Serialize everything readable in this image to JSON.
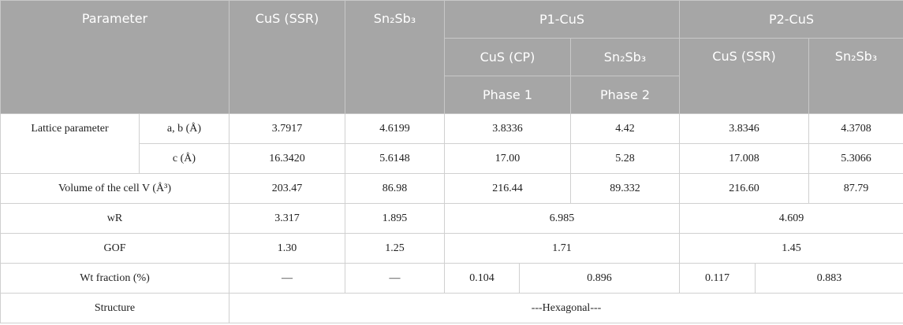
{
  "table": {
    "header": [
      [
        "Parameter",
        "CuS (SSR)",
        "Sn₂Sb₃",
        "P1-CuS",
        "P2-CuS"
      ],
      [
        "CuS (CP)",
        "Sn₂Sb₃",
        "CuS (SSR)",
        "Sn₂Sb₃"
      ],
      [
        "Phase 1",
        "Phase 2"
      ]
    ],
    "rows": [
      [
        "Lattice parameter",
        "a, b (Å)",
        "3.7917",
        "4.6199",
        "3.8336",
        "4.42",
        "3.8346",
        "4.3708"
      ],
      [
        "c (Å)",
        "16.3420",
        "5.6148",
        "17.00",
        "5.28",
        "17.008",
        "5.3066"
      ],
      [
        "Volume of the cell V (Å³)",
        "203.47",
        "86.98",
        "216.44",
        "89.332",
        "216.60",
        "87.79"
      ],
      [
        "wR",
        "3.317",
        "1.895",
        "6.985",
        "4.609"
      ],
      [
        "GOF",
        "1.30",
        "1.25",
        "1.71",
        "1.45"
      ],
      [
        "Wt fraction (%)",
        "—",
        "—",
        "0.104",
        "0.896",
        "0.117",
        "0.883"
      ],
      [
        "Structure",
        "---Hexagonal---"
      ]
    ]
  }
}
